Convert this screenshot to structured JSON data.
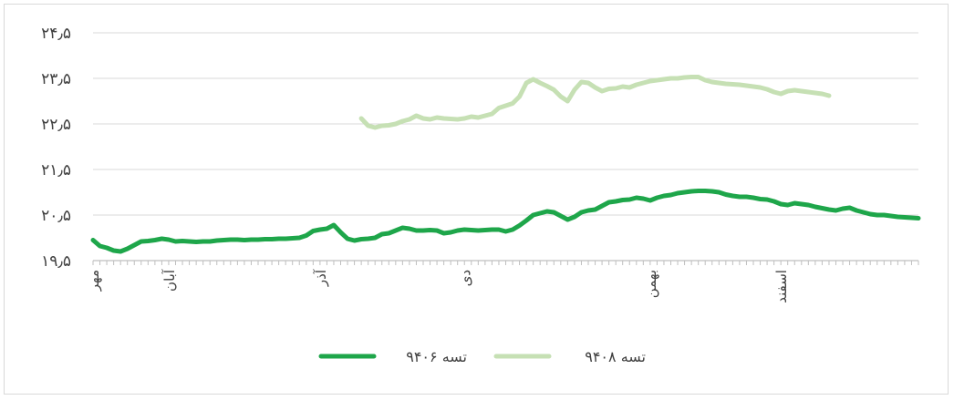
{
  "chart_data": {
    "type": "line",
    "title": "",
    "xlabel": "",
    "ylabel": "",
    "ylim": [
      19.5,
      24.5
    ],
    "yticks": [
      19.5,
      20.5,
      21.5,
      22.5,
      23.5,
      24.5
    ],
    "ytick_labels": [
      "۱۹٫۵",
      "۲۰٫۵",
      "۲۱٫۵",
      "۲۲٫۵",
      "۲۳٫۵",
      "۲۴٫۵"
    ],
    "x_range": [
      0,
      120
    ],
    "month_labels": [
      {
        "label": "مهر",
        "x": 0
      },
      {
        "label": "آبان",
        "x": 11
      },
      {
        "label": "آذر",
        "x": 33
      },
      {
        "label": "دی",
        "x": 54
      },
      {
        "label": "بهمن",
        "x": 81
      },
      {
        "label": "اسفند",
        "x": 100
      }
    ],
    "grid": true,
    "legend_position": "bottom",
    "series": [
      {
        "name": "تسه ۹۴۰۶",
        "color": "#1ea64a",
        "points": [
          [
            0,
            19.95
          ],
          [
            1,
            19.82
          ],
          [
            2,
            19.78
          ],
          [
            3,
            19.72
          ],
          [
            4,
            19.7
          ],
          [
            5,
            19.76
          ],
          [
            6,
            19.84
          ],
          [
            7,
            19.92
          ],
          [
            8,
            19.93
          ],
          [
            9,
            19.95
          ],
          [
            10,
            19.98
          ],
          [
            11,
            19.96
          ],
          [
            12,
            19.92
          ],
          [
            13,
            19.93
          ],
          [
            14,
            19.92
          ],
          [
            15,
            19.91
          ],
          [
            16,
            19.92
          ],
          [
            17,
            19.92
          ],
          [
            18,
            19.94
          ],
          [
            19,
            19.95
          ],
          [
            20,
            19.96
          ],
          [
            21,
            19.96
          ],
          [
            22,
            19.95
          ],
          [
            23,
            19.96
          ],
          [
            24,
            19.96
          ],
          [
            25,
            19.97
          ],
          [
            26,
            19.97
          ],
          [
            27,
            19.98
          ],
          [
            28,
            19.98
          ],
          [
            29,
            19.99
          ],
          [
            30,
            20.0
          ],
          [
            31,
            20.05
          ],
          [
            32,
            20.15
          ],
          [
            33,
            20.18
          ],
          [
            34,
            20.2
          ],
          [
            35,
            20.28
          ],
          [
            36,
            20.12
          ],
          [
            37,
            19.98
          ],
          [
            38,
            19.94
          ],
          [
            39,
            19.97
          ],
          [
            40,
            19.98
          ],
          [
            41,
            20.0
          ],
          [
            42,
            20.08
          ],
          [
            43,
            20.1
          ],
          [
            44,
            20.16
          ],
          [
            45,
            20.22
          ],
          [
            46,
            20.2
          ],
          [
            47,
            20.16
          ],
          [
            48,
            20.16
          ],
          [
            49,
            20.17
          ],
          [
            50,
            20.16
          ],
          [
            51,
            20.1
          ],
          [
            52,
            20.12
          ],
          [
            53,
            20.16
          ],
          [
            54,
            20.18
          ],
          [
            55,
            20.17
          ],
          [
            56,
            20.16
          ],
          [
            57,
            20.17
          ],
          [
            58,
            20.18
          ],
          [
            59,
            20.18
          ],
          [
            60,
            20.14
          ],
          [
            61,
            20.18
          ],
          [
            62,
            20.27
          ],
          [
            63,
            20.38
          ],
          [
            64,
            20.5
          ],
          [
            65,
            20.54
          ],
          [
            66,
            20.58
          ],
          [
            67,
            20.56
          ],
          [
            68,
            20.48
          ],
          [
            69,
            20.4
          ],
          [
            70,
            20.46
          ],
          [
            71,
            20.56
          ],
          [
            72,
            20.6
          ],
          [
            73,
            20.62
          ],
          [
            74,
            20.7
          ],
          [
            75,
            20.78
          ],
          [
            76,
            20.8
          ],
          [
            77,
            20.83
          ],
          [
            78,
            20.84
          ],
          [
            79,
            20.88
          ],
          [
            80,
            20.86
          ],
          [
            81,
            20.82
          ],
          [
            82,
            20.88
          ],
          [
            83,
            20.92
          ],
          [
            84,
            20.94
          ],
          [
            85,
            20.98
          ],
          [
            86,
            21.0
          ],
          [
            87,
            21.02
          ],
          [
            88,
            21.03
          ],
          [
            89,
            21.03
          ],
          [
            90,
            21.02
          ],
          [
            91,
            21.0
          ],
          [
            92,
            20.95
          ],
          [
            93,
            20.92
          ],
          [
            94,
            20.9
          ],
          [
            95,
            20.9
          ],
          [
            96,
            20.88
          ],
          [
            97,
            20.85
          ],
          [
            98,
            20.84
          ],
          [
            99,
            20.8
          ],
          [
            100,
            20.74
          ],
          [
            101,
            20.72
          ],
          [
            102,
            20.76
          ],
          [
            103,
            20.74
          ],
          [
            104,
            20.72
          ],
          [
            105,
            20.68
          ],
          [
            106,
            20.65
          ],
          [
            107,
            20.62
          ],
          [
            108,
            20.6
          ],
          [
            109,
            20.64
          ],
          [
            110,
            20.66
          ],
          [
            111,
            20.6
          ],
          [
            112,
            20.56
          ],
          [
            113,
            20.52
          ],
          [
            114,
            20.5
          ],
          [
            115,
            20.5
          ],
          [
            116,
            20.48
          ],
          [
            117,
            20.46
          ],
          [
            118,
            20.45
          ],
          [
            119,
            20.44
          ],
          [
            120,
            20.43
          ]
        ]
      },
      {
        "name": "تسه ۹۴۰۸",
        "color": "#c6e0b4",
        "points": [
          [
            39,
            22.62
          ],
          [
            40,
            22.46
          ],
          [
            41,
            22.42
          ],
          [
            42,
            22.46
          ],
          [
            43,
            22.47
          ],
          [
            44,
            22.5
          ],
          [
            45,
            22.56
          ],
          [
            46,
            22.6
          ],
          [
            47,
            22.68
          ],
          [
            48,
            22.62
          ],
          [
            49,
            22.6
          ],
          [
            50,
            22.64
          ],
          [
            51,
            22.62
          ],
          [
            52,
            22.61
          ],
          [
            53,
            22.6
          ],
          [
            54,
            22.62
          ],
          [
            55,
            22.66
          ],
          [
            56,
            22.64
          ],
          [
            57,
            22.68
          ],
          [
            58,
            22.72
          ],
          [
            59,
            22.85
          ],
          [
            60,
            22.9
          ],
          [
            61,
            22.95
          ],
          [
            62,
            23.1
          ],
          [
            63,
            23.4
          ],
          [
            64,
            23.48
          ],
          [
            65,
            23.4
          ],
          [
            66,
            23.33
          ],
          [
            67,
            23.25
          ],
          [
            68,
            23.1
          ],
          [
            69,
            23.0
          ],
          [
            70,
            23.25
          ],
          [
            71,
            23.42
          ],
          [
            72,
            23.4
          ],
          [
            73,
            23.3
          ],
          [
            74,
            23.22
          ],
          [
            75,
            23.27
          ],
          [
            76,
            23.28
          ],
          [
            77,
            23.32
          ],
          [
            78,
            23.3
          ],
          [
            79,
            23.36
          ],
          [
            80,
            23.4
          ],
          [
            81,
            23.44
          ],
          [
            82,
            23.46
          ],
          [
            83,
            23.48
          ],
          [
            84,
            23.5
          ],
          [
            85,
            23.5
          ],
          [
            86,
            23.52
          ],
          [
            87,
            23.53
          ],
          [
            88,
            23.53
          ],
          [
            89,
            23.46
          ],
          [
            90,
            23.42
          ],
          [
            91,
            23.4
          ],
          [
            92,
            23.38
          ],
          [
            93,
            23.37
          ],
          [
            94,
            23.36
          ],
          [
            95,
            23.34
          ],
          [
            96,
            23.32
          ],
          [
            97,
            23.3
          ],
          [
            98,
            23.26
          ],
          [
            99,
            23.2
          ],
          [
            100,
            23.16
          ],
          [
            101,
            23.22
          ],
          [
            102,
            23.24
          ],
          [
            103,
            23.22
          ],
          [
            104,
            23.2
          ],
          [
            105,
            23.18
          ],
          [
            106,
            23.16
          ],
          [
            107,
            23.12
          ]
        ]
      }
    ]
  }
}
